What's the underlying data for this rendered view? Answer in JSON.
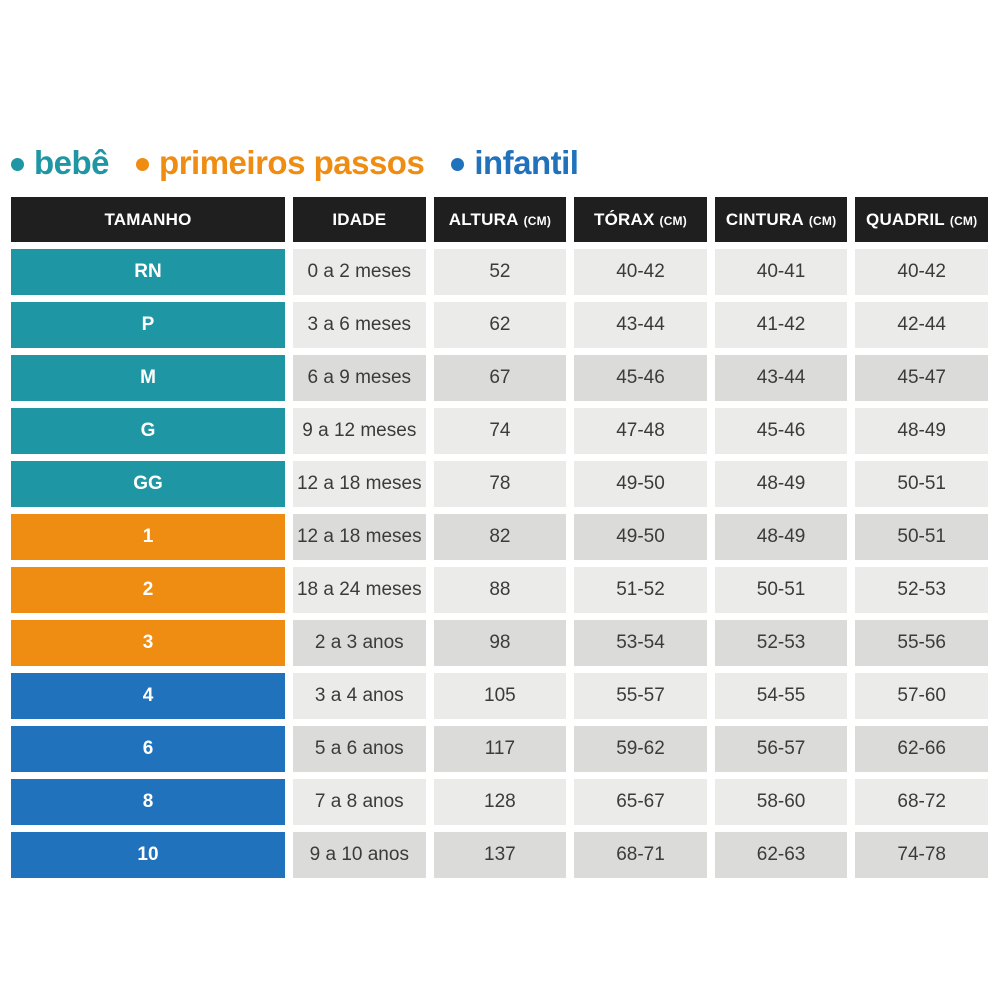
{
  "legend": {
    "items": [
      {
        "label": "bebê",
        "color": "#1e96a3"
      },
      {
        "label": "primeiros passos",
        "color": "#ef8c12"
      },
      {
        "label": "infantil",
        "color": "#1f72bb"
      }
    ]
  },
  "table": {
    "header_bg": "#1f1f1f",
    "header_text_color": "#ffffff",
    "value_text_color": "#3b3b3b",
    "category_colors": {
      "bebe": "#1e96a3",
      "primeiros_passos": "#ef8c12",
      "infantil": "#1f72bb"
    },
    "row_shades": {
      "light": "#ebebe9",
      "dark": "#dbdbd9"
    },
    "columns": [
      {
        "label": "TAMANHO",
        "unit": ""
      },
      {
        "label": "IDADE",
        "unit": ""
      },
      {
        "label": "ALTURA",
        "unit": "(CM)"
      },
      {
        "label": "TÓRAX",
        "unit": "(CM)"
      },
      {
        "label": "CINTURA",
        "unit": "(CM)"
      },
      {
        "label": "QUADRIL",
        "unit": "(CM)"
      }
    ],
    "rows": [
      {
        "size": "RN",
        "category": "bebe",
        "shade": "light",
        "cells": [
          "0 a 2 meses",
          "52",
          "40-42",
          "40-41",
          "40-42"
        ]
      },
      {
        "size": "P",
        "category": "bebe",
        "shade": "light",
        "cells": [
          "3 a 6 meses",
          "62",
          "43-44",
          "41-42",
          "42-44"
        ]
      },
      {
        "size": "M",
        "category": "bebe",
        "shade": "dark",
        "cells": [
          "6 a 9 meses",
          "67",
          "45-46",
          "43-44",
          "45-47"
        ]
      },
      {
        "size": "G",
        "category": "bebe",
        "shade": "light",
        "cells": [
          "9 a 12 meses",
          "74",
          "47-48",
          "45-46",
          "48-49"
        ]
      },
      {
        "size": "GG",
        "category": "bebe",
        "shade": "light",
        "cells": [
          "12 a 18 meses",
          "78",
          "49-50",
          "48-49",
          "50-51"
        ]
      },
      {
        "size": "1",
        "category": "primeiros_passos",
        "shade": "dark",
        "cells": [
          "12 a 18 meses",
          "82",
          "49-50",
          "48-49",
          "50-51"
        ]
      },
      {
        "size": "2",
        "category": "primeiros_passos",
        "shade": "light",
        "cells": [
          "18 a 24 meses",
          "88",
          "51-52",
          "50-51",
          "52-53"
        ]
      },
      {
        "size": "3",
        "category": "primeiros_passos",
        "shade": "dark",
        "cells": [
          "2 a 3 anos",
          "98",
          "53-54",
          "52-53",
          "55-56"
        ]
      },
      {
        "size": "4",
        "category": "infantil",
        "shade": "light",
        "cells": [
          "3 a 4 anos",
          "105",
          "55-57",
          "54-55",
          "57-60"
        ]
      },
      {
        "size": "6",
        "category": "infantil",
        "shade": "dark",
        "cells": [
          "5 a 6 anos",
          "117",
          "59-62",
          "56-57",
          "62-66"
        ]
      },
      {
        "size": "8",
        "category": "infantil",
        "shade": "light",
        "cells": [
          "7 a 8 anos",
          "128",
          "65-67",
          "58-60",
          "68-72"
        ]
      },
      {
        "size": "10",
        "category": "infantil",
        "shade": "dark",
        "cells": [
          "9 a 10 anos",
          "137",
          "68-71",
          "62-63",
          "74-78"
        ]
      }
    ]
  },
  "chart_data": {
    "type": "table",
    "title": "",
    "legend": [
      "bebê",
      "primeiros passos",
      "infantil"
    ],
    "legend_position": "top",
    "columns": [
      "TAMANHO",
      "IDADE",
      "ALTURA (CM)",
      "TÓRAX (CM)",
      "CINTURA (CM)",
      "QUADRIL (CM)"
    ],
    "rows": [
      [
        "RN",
        "0 a 2 meses",
        "52",
        "40-42",
        "40-41",
        "40-42"
      ],
      [
        "P",
        "3 a 6 meses",
        "62",
        "43-44",
        "41-42",
        "42-44"
      ],
      [
        "M",
        "6 a 9 meses",
        "67",
        "45-46",
        "43-44",
        "45-47"
      ],
      [
        "G",
        "9 a 12 meses",
        "74",
        "47-48",
        "45-46",
        "48-49"
      ],
      [
        "GG",
        "12 a 18 meses",
        "78",
        "49-50",
        "48-49",
        "50-51"
      ],
      [
        "1",
        "12 a 18 meses",
        "82",
        "49-50",
        "48-49",
        "50-51"
      ],
      [
        "2",
        "18 a 24 meses",
        "88",
        "51-52",
        "50-51",
        "52-53"
      ],
      [
        "3",
        "2 a 3 anos",
        "98",
        "53-54",
        "52-53",
        "55-56"
      ],
      [
        "4",
        "3 a 4 anos",
        "105",
        "55-57",
        "54-55",
        "57-60"
      ],
      [
        "6",
        "5 a 6 anos",
        "117",
        "59-62",
        "56-57",
        "62-66"
      ],
      [
        "8",
        "7 a 8 anos",
        "128",
        "65-67",
        "58-60",
        "68-72"
      ],
      [
        "10",
        "9 a 10 anos",
        "137",
        "68-71",
        "62-63",
        "74-78"
      ]
    ],
    "row_categories": [
      "bebê",
      "bebê",
      "bebê",
      "bebê",
      "bebê",
      "primeiros passos",
      "primeiros passos",
      "primeiros passos",
      "infantil",
      "infantil",
      "infantil",
      "infantil"
    ]
  }
}
